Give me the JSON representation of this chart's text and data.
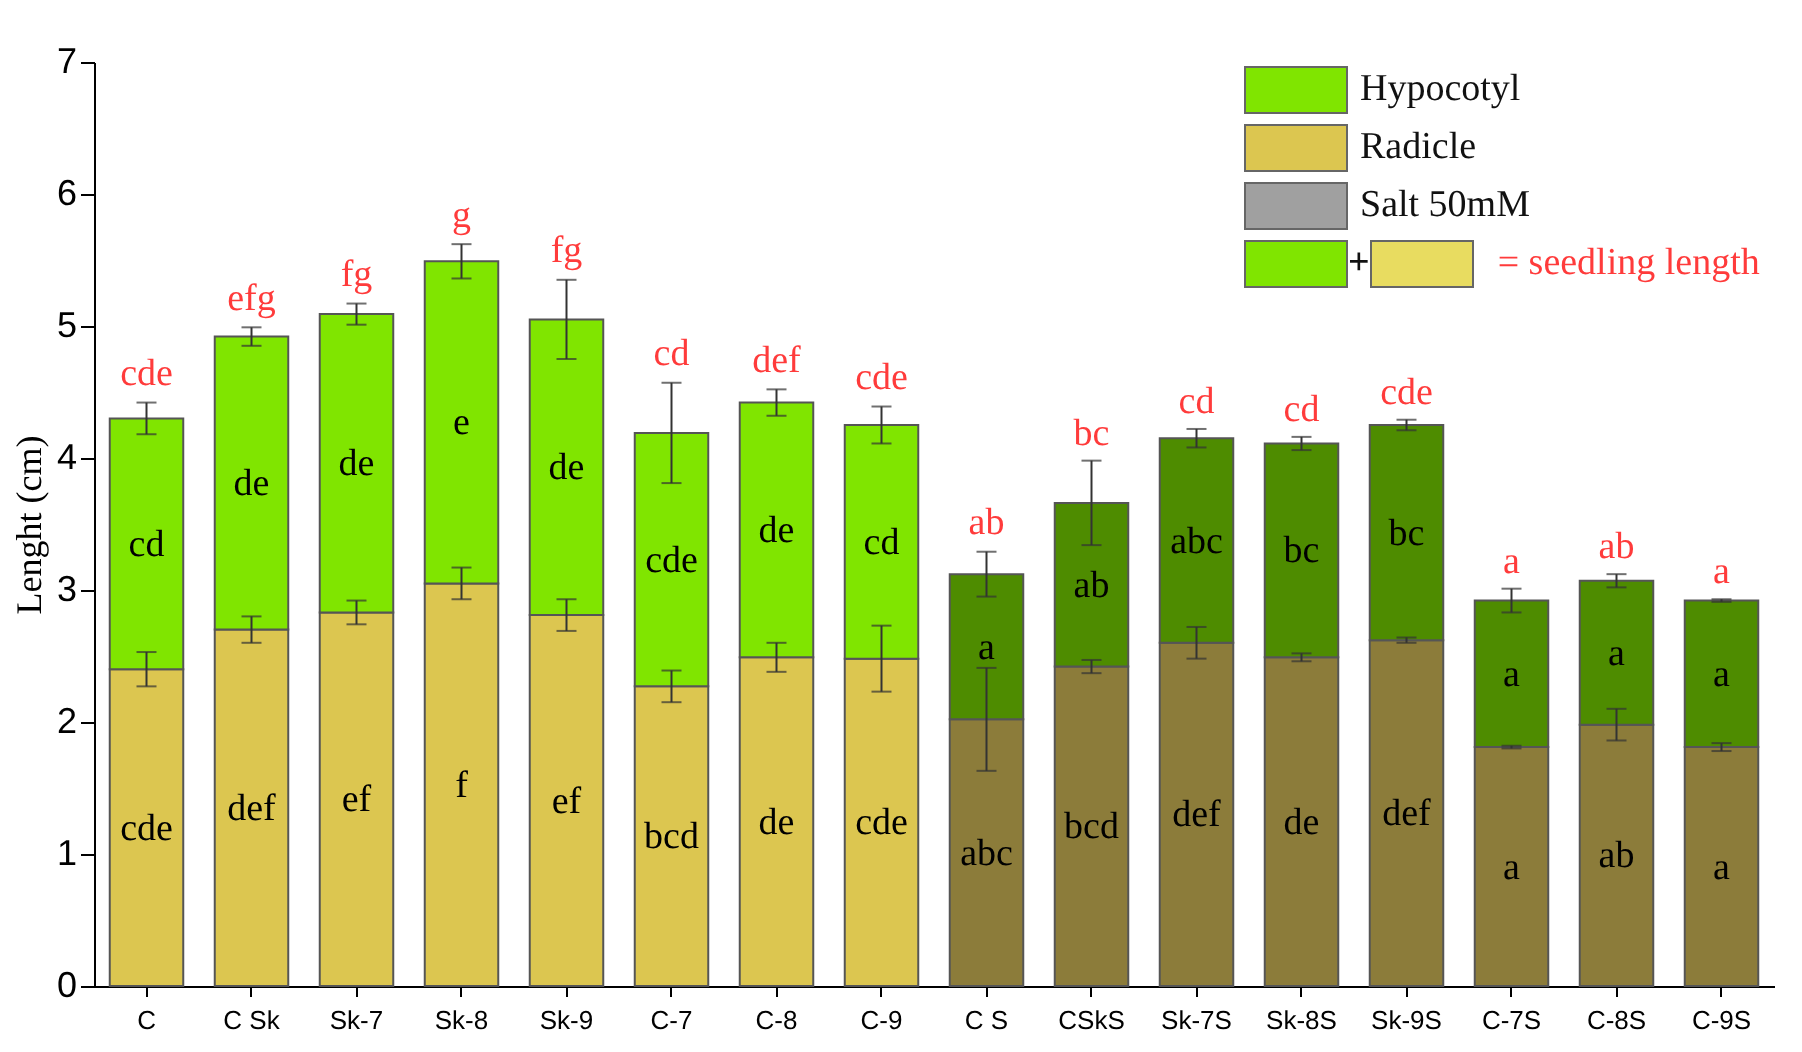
{
  "chart_data": {
    "type": "bar",
    "stacked": true,
    "ylabel": "Lenght (cm)",
    "ylim": [
      0,
      7
    ],
    "yticks": [
      0,
      1,
      2,
      3,
      4,
      5,
      6,
      7
    ],
    "legend": "top right",
    "categories": [
      "C",
      "C Sk",
      "Sk-7",
      "Sk-8",
      "Sk-9",
      "C-7",
      "C-8",
      "C-9",
      "C S",
      "CSkS",
      "Sk-7S",
      "Sk-8S",
      "Sk-9S",
      "C-7S",
      "C-8S",
      "C-9S"
    ],
    "series": [
      {
        "name": "Radicle",
        "color": "#dcc650",
        "colors": [
          "#dcc650",
          "#dcc650",
          "#dcc650",
          "#dcc650",
          "#dcc650",
          "#dcc650",
          "#dcc650",
          "#dcc650",
          "#8c7c3a",
          "#8c7c3a",
          "#8c7c3a",
          "#8c7c3a",
          "#8c7c3a",
          "#8c7c3a",
          "#8c7c3a",
          "#8c7c3a"
        ],
        "values": [
          2.4,
          2.7,
          2.83,
          3.05,
          2.81,
          2.27,
          2.49,
          2.48,
          2.02,
          2.42,
          2.6,
          2.49,
          2.62,
          1.81,
          1.98,
          1.81
        ],
        "errors": [
          0.13,
          0.1,
          0.09,
          0.12,
          0.12,
          0.12,
          0.11,
          0.25,
          0.39,
          0.05,
          0.12,
          0.03,
          0.02,
          0.01,
          0.12,
          0.03
        ],
        "value_labels": [
          "cde",
          "def",
          "ef",
          "f",
          "ef",
          "bcd",
          "de",
          "cde",
          "abc",
          "bcd",
          "def",
          "de",
          "def",
          "a",
          "ab",
          "a"
        ]
      },
      {
        "name": "Hypocotyl",
        "color": "#80e500",
        "colors": [
          "#80e500",
          "#80e500",
          "#80e500",
          "#80e500",
          "#80e500",
          "#80e500",
          "#80e500",
          "#80e500",
          "#4e8c00",
          "#4e8c00",
          "#4e8c00",
          "#4e8c00",
          "#4e8c00",
          "#4e8c00",
          "#4e8c00",
          "#4e8c00"
        ],
        "values": [
          1.9,
          2.22,
          2.26,
          2.44,
          2.24,
          1.92,
          1.93,
          1.77,
          1.1,
          1.24,
          1.55,
          1.62,
          1.63,
          1.11,
          1.09,
          1.11
        ],
        "errors": [
          0.12,
          0.07,
          0.08,
          0.13,
          0.3,
          0.38,
          0.1,
          0.14,
          0.17,
          0.32,
          0.07,
          0.05,
          0.04,
          0.09,
          0.05,
          0.01
        ],
        "value_labels": [
          "cd",
          "de",
          "de",
          "e",
          "de",
          "cde",
          "de",
          "cd",
          "a",
          "ab",
          "abc",
          "bc",
          "bc",
          "a",
          "a",
          "a"
        ]
      },
      {
        "name": "Salt 50mM",
        "color": "#a0a0a0",
        "values": [
          null,
          null,
          null,
          null,
          null,
          null,
          null,
          null,
          null,
          null,
          null,
          null,
          null,
          null,
          null,
          null
        ]
      }
    ],
    "annotations": [
      {
        "text": "cde",
        "x": "C",
        "y": 4.43
      },
      {
        "text": "efg",
        "x": "C Sk",
        "y": 5.0
      },
      {
        "text": "fg",
        "x": "Sk-7",
        "y": 5.18
      },
      {
        "text": "g",
        "x": "Sk-8",
        "y": 5.63
      },
      {
        "text": "fg",
        "x": "Sk-9",
        "y": 5.36
      },
      {
        "text": "cd",
        "x": "C-7",
        "y": 4.58
      },
      {
        "text": "def",
        "x": "C-8",
        "y": 4.53
      },
      {
        "text": "cde",
        "x": "C-9",
        "y": 4.4
      },
      {
        "text": "ab",
        "x": "C S",
        "y": 3.3
      },
      {
        "text": "bc",
        "x": "CSkS",
        "y": 3.98
      },
      {
        "text": "cd",
        "x": "Sk-7S",
        "y": 4.22
      },
      {
        "text": "cd",
        "x": "Sk-8S",
        "y": 4.16
      },
      {
        "text": "cde",
        "x": "Sk-9S",
        "y": 4.29
      },
      {
        "text": "a",
        "x": "C-7S",
        "y": 3.01
      },
      {
        "text": "ab",
        "x": "C-8S",
        "y": 3.12
      },
      {
        "text": "a",
        "x": "C-9S",
        "y": 2.93
      },
      "+",
      "= seedling length"
    ]
  }
}
